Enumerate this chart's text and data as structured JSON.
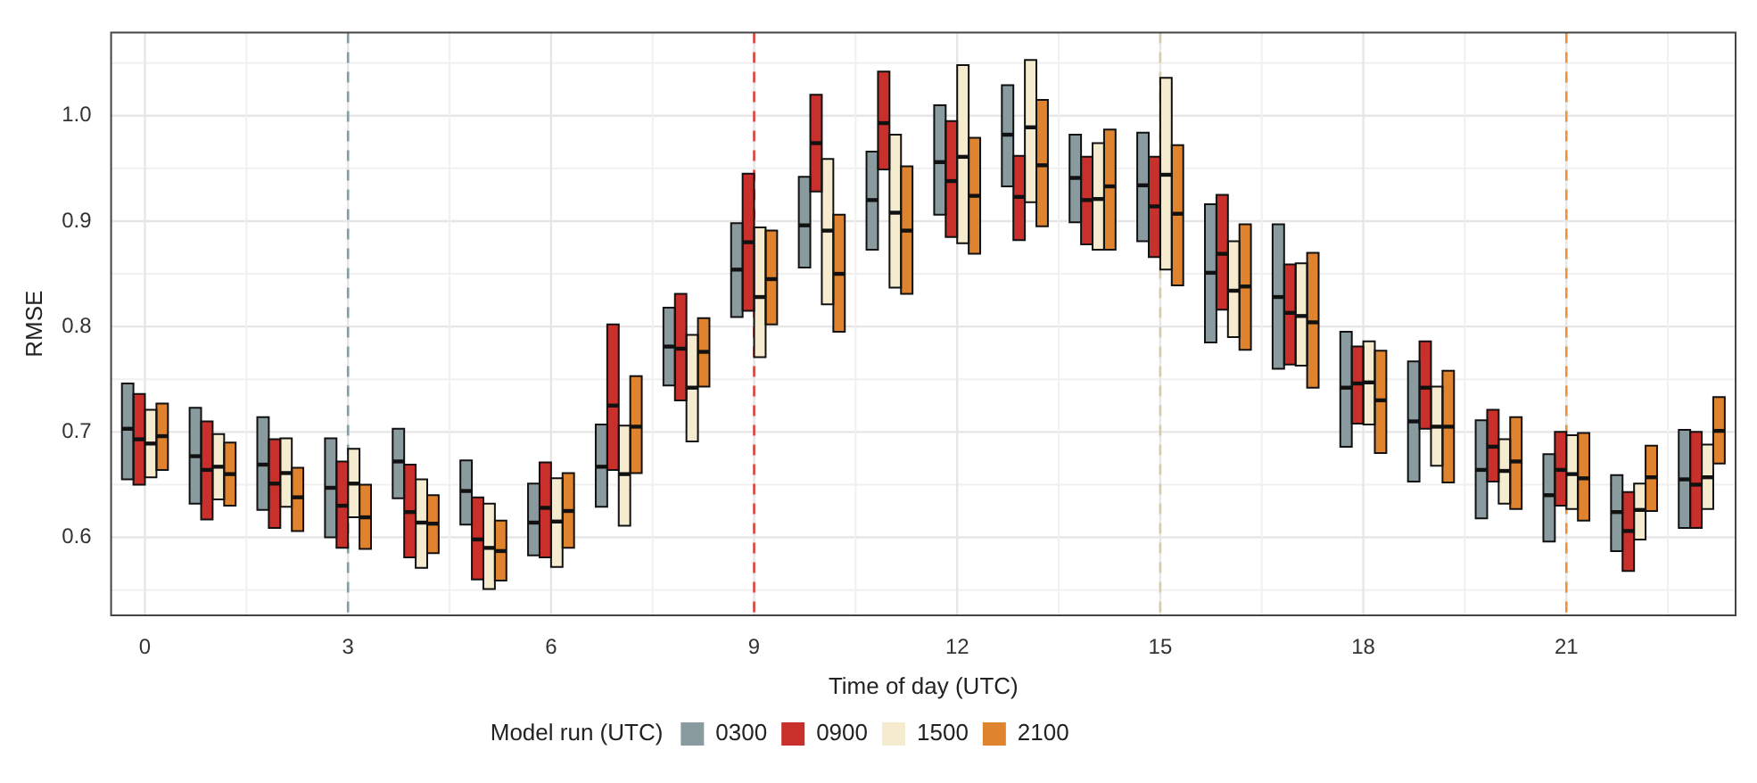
{
  "chart_data": {
    "type": "box",
    "xlabel": "Time of day (UTC)",
    "ylabel": "RMSE",
    "legend_title": "Model run (UTC)",
    "legend": "bottom",
    "grid": true,
    "categories": [
      "0",
      null,
      null,
      "3",
      null,
      null,
      "6",
      null,
      null,
      "9",
      null,
      null,
      "12",
      null,
      null,
      "15",
      null,
      null,
      "18",
      null,
      null,
      "21",
      null,
      null
    ],
    "ylim": [
      0.526,
      1.079
    ],
    "yticks": [
      {
        "value": 0.55,
        "label": null
      },
      0.6,
      {
        "value": 0.65,
        "label": null
      },
      0.7,
      {
        "value": 0.75,
        "label": null
      },
      0.8,
      {
        "value": 0.85,
        "label": null
      },
      0.9,
      {
        "value": 0.95,
        "label": null
      },
      {
        "value": 1,
        "label": "1.0"
      },
      {
        "value": 1.05,
        "label": null
      }
    ],
    "ref_lines": [
      {
        "axis": "x",
        "value": "3",
        "color": "#7f9ea3",
        "line_style": "dashed"
      },
      {
        "axis": "x",
        "value": "9",
        "color": "#e0413a",
        "line_style": "dashed"
      },
      {
        "axis": "x",
        "value": "15",
        "color": "#d8cba8",
        "line_style": "dashed"
      },
      {
        "axis": "x",
        "value": "21",
        "color": "#f0923a",
        "line_style": "dashed"
      }
    ],
    "series": [
      {
        "name": "0300",
        "color": "#8a9ba0",
        "boxes": [
          {
            "low": 0.655,
            "q1": 0.655,
            "median": 0.703,
            "q3": 0.746,
            "high": 0.746
          },
          {
            "low": 0.632,
            "q1": 0.632,
            "median": 0.677,
            "q3": 0.723,
            "high": 0.723
          },
          {
            "low": 0.626,
            "q1": 0.626,
            "median": 0.669,
            "q3": 0.714,
            "high": 0.714
          },
          {
            "low": 0.6,
            "q1": 0.6,
            "median": 0.647,
            "q3": 0.694,
            "high": 0.694
          },
          {
            "low": 0.637,
            "q1": 0.637,
            "median": 0.672,
            "q3": 0.703,
            "high": 0.703
          },
          {
            "low": 0.612,
            "q1": 0.612,
            "median": 0.644,
            "q3": 0.673,
            "high": 0.673
          },
          {
            "low": 0.583,
            "q1": 0.583,
            "median": 0.614,
            "q3": 0.651,
            "high": 0.651
          },
          {
            "low": 0.629,
            "q1": 0.629,
            "median": 0.667,
            "q3": 0.707,
            "high": 0.707
          },
          {
            "low": 0.744,
            "q1": 0.744,
            "median": 0.781,
            "q3": 0.818,
            "high": 0.818
          },
          {
            "low": 0.809,
            "q1": 0.809,
            "median": 0.854,
            "q3": 0.898,
            "high": 0.898
          },
          {
            "low": 0.856,
            "q1": 0.856,
            "median": 0.896,
            "q3": 0.942,
            "high": 0.942
          },
          {
            "low": 0.873,
            "q1": 0.873,
            "median": 0.92,
            "q3": 0.966,
            "high": 0.966
          },
          {
            "low": 0.906,
            "q1": 0.906,
            "median": 0.956,
            "q3": 1.01,
            "high": 1.01
          },
          {
            "low": 0.933,
            "q1": 0.933,
            "median": 0.982,
            "q3": 1.029,
            "high": 1.029
          },
          {
            "low": 0.899,
            "q1": 0.899,
            "median": 0.941,
            "q3": 0.982,
            "high": 0.982
          },
          {
            "low": 0.881,
            "q1": 0.881,
            "median": 0.934,
            "q3": 0.984,
            "high": 0.984
          },
          {
            "low": 0.785,
            "q1": 0.785,
            "median": 0.851,
            "q3": 0.916,
            "high": 0.916
          },
          {
            "low": 0.76,
            "q1": 0.76,
            "median": 0.828,
            "q3": 0.897,
            "high": 0.897
          },
          {
            "low": 0.686,
            "q1": 0.686,
            "median": 0.742,
            "q3": 0.795,
            "high": 0.795
          },
          {
            "low": 0.653,
            "q1": 0.653,
            "median": 0.71,
            "q3": 0.767,
            "high": 0.767
          },
          {
            "low": 0.618,
            "q1": 0.618,
            "median": 0.664,
            "q3": 0.711,
            "high": 0.711
          },
          {
            "low": 0.596,
            "q1": 0.596,
            "median": 0.64,
            "q3": 0.679,
            "high": 0.679
          },
          {
            "low": 0.587,
            "q1": 0.587,
            "median": 0.624,
            "q3": 0.659,
            "high": 0.659
          },
          {
            "low": 0.609,
            "q1": 0.609,
            "median": 0.655,
            "q3": 0.702,
            "high": 0.702
          }
        ]
      },
      {
        "name": "0900",
        "color": "#c9302c",
        "boxes": [
          {
            "low": 0.65,
            "q1": 0.65,
            "median": 0.693,
            "q3": 0.736,
            "high": 0.736
          },
          {
            "low": 0.617,
            "q1": 0.617,
            "median": 0.664,
            "q3": 0.71,
            "high": 0.71
          },
          {
            "low": 0.609,
            "q1": 0.609,
            "median": 0.651,
            "q3": 0.693,
            "high": 0.693
          },
          {
            "low": 0.59,
            "q1": 0.59,
            "median": 0.63,
            "q3": 0.672,
            "high": 0.672
          },
          {
            "low": 0.581,
            "q1": 0.581,
            "median": 0.624,
            "q3": 0.669,
            "high": 0.669
          },
          {
            "low": 0.56,
            "q1": 0.56,
            "median": 0.598,
            "q3": 0.638,
            "high": 0.638
          },
          {
            "low": 0.581,
            "q1": 0.581,
            "median": 0.628,
            "q3": 0.671,
            "high": 0.671
          },
          {
            "low": 0.664,
            "q1": 0.664,
            "median": 0.725,
            "q3": 0.802,
            "high": 0.802
          },
          {
            "low": 0.73,
            "q1": 0.73,
            "median": 0.779,
            "q3": 0.831,
            "high": 0.831
          },
          {
            "low": 0.815,
            "q1": 0.815,
            "median": 0.88,
            "q3": 0.945,
            "high": 0.945
          },
          {
            "low": 0.928,
            "q1": 0.928,
            "median": 0.974,
            "q3": 1.02,
            "high": 1.02
          },
          {
            "low": 0.949,
            "q1": 0.949,
            "median": 0.993,
            "q3": 1.042,
            "high": 1.042
          },
          {
            "low": 0.885,
            "q1": 0.885,
            "median": 0.938,
            "q3": 0.995,
            "high": 0.995
          },
          {
            "low": 0.882,
            "q1": 0.882,
            "median": 0.923,
            "q3": 0.962,
            "high": 0.962
          },
          {
            "low": 0.878,
            "q1": 0.878,
            "median": 0.92,
            "q3": 0.961,
            "high": 0.961
          },
          {
            "low": 0.866,
            "q1": 0.866,
            "median": 0.914,
            "q3": 0.961,
            "high": 0.961
          },
          {
            "low": 0.816,
            "q1": 0.816,
            "median": 0.869,
            "q3": 0.925,
            "high": 0.925
          },
          {
            "low": 0.764,
            "q1": 0.764,
            "median": 0.813,
            "q3": 0.859,
            "high": 0.859
          },
          {
            "low": 0.708,
            "q1": 0.708,
            "median": 0.746,
            "q3": 0.781,
            "high": 0.781
          },
          {
            "low": 0.703,
            "q1": 0.703,
            "median": 0.742,
            "q3": 0.786,
            "high": 0.786
          },
          {
            "low": 0.653,
            "q1": 0.653,
            "median": 0.686,
            "q3": 0.721,
            "high": 0.721
          },
          {
            "low": 0.63,
            "q1": 0.63,
            "median": 0.664,
            "q3": 0.7,
            "high": 0.7
          },
          {
            "low": 0.568,
            "q1": 0.568,
            "median": 0.606,
            "q3": 0.643,
            "high": 0.643
          },
          {
            "low": 0.609,
            "q1": 0.609,
            "median": 0.65,
            "q3": 0.7,
            "high": 0.7
          }
        ]
      },
      {
        "name": "1500",
        "color": "#f5ecd0",
        "boxes": [
          {
            "low": 0.657,
            "q1": 0.657,
            "median": 0.689,
            "q3": 0.721,
            "high": 0.721
          },
          {
            "low": 0.636,
            "q1": 0.636,
            "median": 0.667,
            "q3": 0.698,
            "high": 0.698
          },
          {
            "low": 0.629,
            "q1": 0.629,
            "median": 0.661,
            "q3": 0.694,
            "high": 0.694
          },
          {
            "low": 0.619,
            "q1": 0.619,
            "median": 0.651,
            "q3": 0.684,
            "high": 0.684
          },
          {
            "low": 0.571,
            "q1": 0.571,
            "median": 0.614,
            "q3": 0.655,
            "high": 0.655
          },
          {
            "low": 0.551,
            "q1": 0.551,
            "median": 0.59,
            "q3": 0.632,
            "high": 0.632
          },
          {
            "low": 0.572,
            "q1": 0.572,
            "median": 0.615,
            "q3": 0.656,
            "high": 0.656
          },
          {
            "low": 0.611,
            "q1": 0.611,
            "median": 0.66,
            "q3": 0.706,
            "high": 0.706
          },
          {
            "low": 0.691,
            "q1": 0.691,
            "median": 0.742,
            "q3": 0.792,
            "high": 0.792
          },
          {
            "low": 0.771,
            "q1": 0.771,
            "median": 0.828,
            "q3": 0.894,
            "high": 0.894
          },
          {
            "low": 0.821,
            "q1": 0.821,
            "median": 0.891,
            "q3": 0.959,
            "high": 0.959
          },
          {
            "low": 0.837,
            "q1": 0.837,
            "median": 0.908,
            "q3": 0.982,
            "high": 0.982
          },
          {
            "low": 0.879,
            "q1": 0.879,
            "median": 0.961,
            "q3": 1.048,
            "high": 1.048
          },
          {
            "low": 0.918,
            "q1": 0.918,
            "median": 0.989,
            "q3": 1.053,
            "high": 1.053
          },
          {
            "low": 0.873,
            "q1": 0.873,
            "median": 0.921,
            "q3": 0.974,
            "high": 0.974
          },
          {
            "low": 0.854,
            "q1": 0.854,
            "median": 0.944,
            "q3": 1.036,
            "high": 1.036
          },
          {
            "low": 0.79,
            "q1": 0.79,
            "median": 0.834,
            "q3": 0.881,
            "high": 0.881
          },
          {
            "low": 0.763,
            "q1": 0.763,
            "median": 0.81,
            "q3": 0.86,
            "high": 0.86
          },
          {
            "low": 0.707,
            "q1": 0.707,
            "median": 0.747,
            "q3": 0.786,
            "high": 0.786
          },
          {
            "low": 0.668,
            "q1": 0.668,
            "median": 0.705,
            "q3": 0.743,
            "high": 0.743
          },
          {
            "low": 0.632,
            "q1": 0.632,
            "median": 0.663,
            "q3": 0.693,
            "high": 0.693
          },
          {
            "low": 0.627,
            "q1": 0.627,
            "median": 0.66,
            "q3": 0.697,
            "high": 0.697
          },
          {
            "low": 0.598,
            "q1": 0.598,
            "median": 0.626,
            "q3": 0.651,
            "high": 0.651
          },
          {
            "low": 0.627,
            "q1": 0.627,
            "median": 0.657,
            "q3": 0.688,
            "high": 0.688
          }
        ]
      },
      {
        "name": "2100",
        "color": "#e0832f",
        "boxes": [
          {
            "low": 0.664,
            "q1": 0.664,
            "median": 0.696,
            "q3": 0.727,
            "high": 0.727
          },
          {
            "low": 0.63,
            "q1": 0.63,
            "median": 0.66,
            "q3": 0.69,
            "high": 0.69
          },
          {
            "low": 0.606,
            "q1": 0.606,
            "median": 0.638,
            "q3": 0.666,
            "high": 0.666
          },
          {
            "low": 0.589,
            "q1": 0.589,
            "median": 0.619,
            "q3": 0.65,
            "high": 0.65
          },
          {
            "low": 0.585,
            "q1": 0.585,
            "median": 0.613,
            "q3": 0.64,
            "high": 0.64
          },
          {
            "low": 0.559,
            "q1": 0.559,
            "median": 0.587,
            "q3": 0.616,
            "high": 0.616
          },
          {
            "low": 0.59,
            "q1": 0.59,
            "median": 0.625,
            "q3": 0.661,
            "high": 0.661
          },
          {
            "low": 0.661,
            "q1": 0.661,
            "median": 0.705,
            "q3": 0.753,
            "high": 0.753
          },
          {
            "low": 0.743,
            "q1": 0.743,
            "median": 0.776,
            "q3": 0.808,
            "high": 0.808
          },
          {
            "low": 0.802,
            "q1": 0.802,
            "median": 0.845,
            "q3": 0.891,
            "high": 0.891
          },
          {
            "low": 0.795,
            "q1": 0.795,
            "median": 0.85,
            "q3": 0.906,
            "high": 0.906
          },
          {
            "low": 0.831,
            "q1": 0.831,
            "median": 0.891,
            "q3": 0.952,
            "high": 0.952
          },
          {
            "low": 0.869,
            "q1": 0.869,
            "median": 0.924,
            "q3": 0.979,
            "high": 0.979
          },
          {
            "low": 0.895,
            "q1": 0.895,
            "median": 0.953,
            "q3": 1.015,
            "high": 1.015
          },
          {
            "low": 0.873,
            "q1": 0.873,
            "median": 0.933,
            "q3": 0.987,
            "high": 0.987
          },
          {
            "low": 0.839,
            "q1": 0.839,
            "median": 0.907,
            "q3": 0.972,
            "high": 0.972
          },
          {
            "low": 0.778,
            "q1": 0.778,
            "median": 0.838,
            "q3": 0.897,
            "high": 0.897
          },
          {
            "low": 0.742,
            "q1": 0.742,
            "median": 0.804,
            "q3": 0.87,
            "high": 0.87
          },
          {
            "low": 0.68,
            "q1": 0.68,
            "median": 0.73,
            "q3": 0.777,
            "high": 0.777
          },
          {
            "low": 0.652,
            "q1": 0.652,
            "median": 0.705,
            "q3": 0.758,
            "high": 0.758
          },
          {
            "low": 0.627,
            "q1": 0.627,
            "median": 0.672,
            "q3": 0.714,
            "high": 0.714
          },
          {
            "low": 0.616,
            "q1": 0.616,
            "median": 0.656,
            "q3": 0.699,
            "high": 0.699
          },
          {
            "low": 0.625,
            "q1": 0.625,
            "median": 0.657,
            "q3": 0.687,
            "high": 0.687
          },
          {
            "low": 0.67,
            "q1": 0.67,
            "median": 0.701,
            "q3": 0.733,
            "high": 0.733
          }
        ]
      }
    ]
  }
}
